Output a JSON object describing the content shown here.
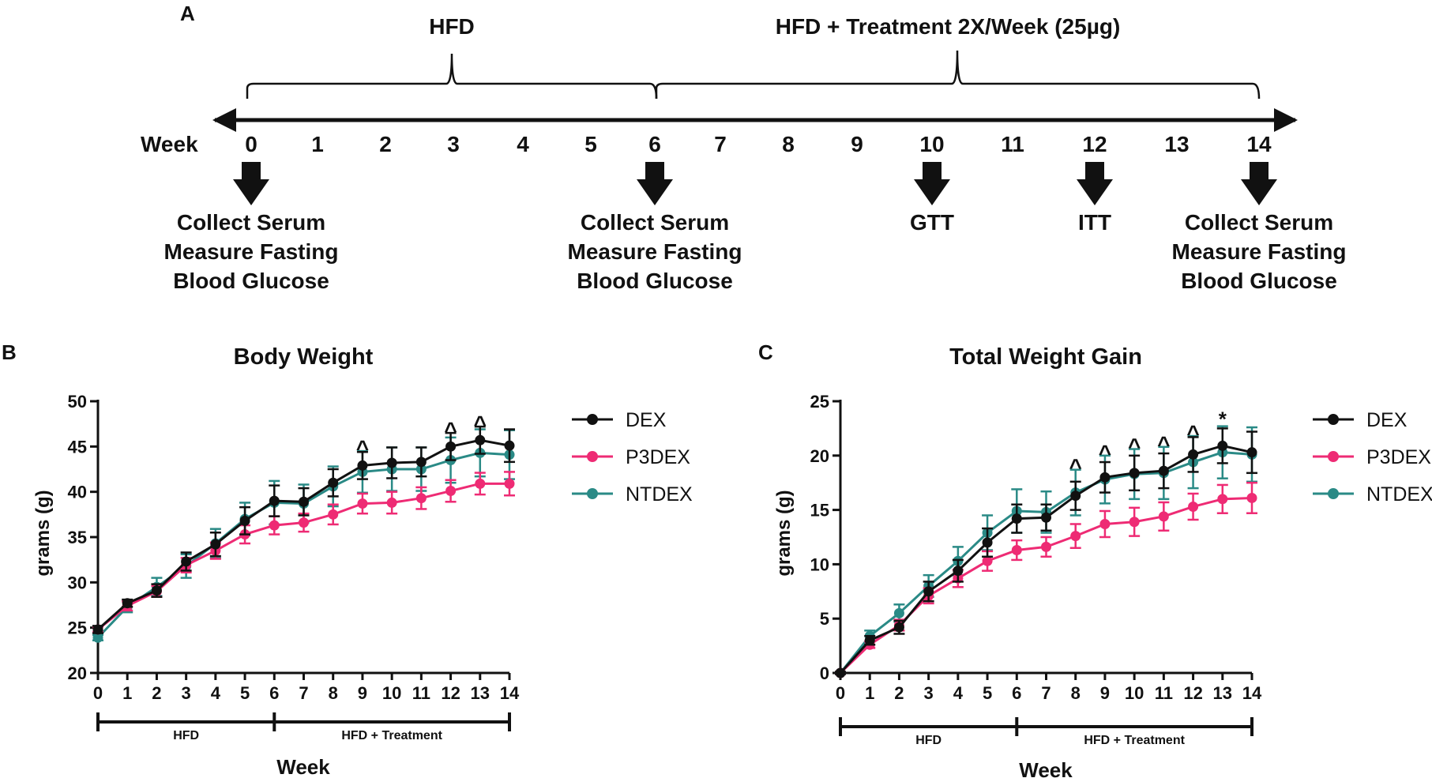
{
  "panel_a": {
    "label": "A",
    "week_label": "Week",
    "weeks": [
      "0",
      "1",
      "2",
      "3",
      "4",
      "5",
      "6",
      "7",
      "8",
      "9",
      "10",
      "11",
      "12",
      "13",
      "14"
    ],
    "phase_hfd": "HFD",
    "phase_treatment": "HFD + Treatment 2X/Week (25µg)",
    "events": [
      {
        "week": 0,
        "lines": [
          "Collect Serum",
          "Measure Fasting",
          "Blood Glucose"
        ]
      },
      {
        "week": 6,
        "lines": [
          "Collect Serum",
          "Measure Fasting",
          "Blood Glucose"
        ]
      },
      {
        "week": 10,
        "lines": [
          "GTT"
        ]
      },
      {
        "week": 12,
        "lines": [
          "ITT"
        ]
      },
      {
        "week": 14,
        "lines": [
          "Collect Serum",
          "Measure Fasting",
          "Blood Glucose"
        ]
      }
    ]
  },
  "colors": {
    "DEX": "#111111",
    "P3DEX": "#ee2b74",
    "NTDEX": "#2a8a86"
  },
  "chart_data": [
    {
      "panel": "B",
      "type": "line",
      "title": "Body Weight",
      "xlabel": "Week",
      "ylabel": "grams (g)",
      "ylim": [
        20,
        50
      ],
      "yticks": [
        20,
        25,
        30,
        35,
        40,
        45,
        50
      ],
      "x": [
        0,
        1,
        2,
        3,
        4,
        5,
        6,
        7,
        8,
        9,
        10,
        11,
        12,
        13,
        14
      ],
      "legend": [
        "DEX",
        "P3DEX",
        "NTDEX"
      ],
      "series": [
        {
          "name": "DEX",
          "values": [
            24.8,
            27.7,
            29.1,
            32.3,
            34.2,
            36.8,
            39.0,
            38.9,
            41.0,
            42.9,
            43.2,
            43.3,
            45.0,
            45.7,
            45.1
          ],
          "errors": [
            0.4,
            0.4,
            0.7,
            1.0,
            1.3,
            1.5,
            1.7,
            1.5,
            1.5,
            1.5,
            1.7,
            1.6,
            1.5,
            1.5,
            1.8
          ]
        },
        {
          "name": "P3DEX",
          "values": [
            24.8,
            27.4,
            29.0,
            31.9,
            33.5,
            35.3,
            36.3,
            36.6,
            37.5,
            38.7,
            38.8,
            39.3,
            40.1,
            40.9,
            40.9
          ],
          "errors": [
            0.3,
            0.5,
            0.6,
            0.8,
            0.9,
            1.0,
            1.0,
            1.0,
            1.1,
            1.1,
            1.2,
            1.2,
            1.2,
            1.2,
            1.3
          ]
        },
        {
          "name": "NTDEX",
          "values": [
            23.9,
            27.3,
            29.5,
            31.8,
            34.3,
            37.0,
            38.8,
            38.7,
            40.6,
            42.2,
            42.5,
            42.5,
            43.5,
            44.3,
            44.1
          ],
          "errors": [
            0.3,
            0.6,
            1.0,
            1.3,
            1.6,
            1.8,
            2.4,
            2.1,
            2.2,
            2.3,
            2.4,
            2.4,
            2.5,
            2.6,
            2.7
          ]
        }
      ],
      "annotations": [
        {
          "x": 9,
          "text": "^"
        },
        {
          "x": 12,
          "text": "^"
        },
        {
          "x": 13,
          "text": "^"
        }
      ],
      "phases": [
        {
          "from": 0,
          "to": 6,
          "label": "HFD"
        },
        {
          "from": 6,
          "to": 14,
          "label": "HFD + Treatment"
        }
      ]
    },
    {
      "panel": "C",
      "type": "line",
      "title": "Total Weight Gain",
      "xlabel": "Week",
      "ylabel": "grams (g)",
      "ylim": [
        0,
        25
      ],
      "yticks": [
        0,
        5,
        10,
        15,
        20,
        25
      ],
      "x": [
        0,
        1,
        2,
        3,
        4,
        5,
        6,
        7,
        8,
        9,
        10,
        11,
        12,
        13,
        14
      ],
      "legend": [
        "DEX",
        "P3DEX",
        "NTDEX"
      ],
      "series": [
        {
          "name": "DEX",
          "values": [
            0,
            3.0,
            4.2,
            7.5,
            9.4,
            12.0,
            14.2,
            14.3,
            16.3,
            18.0,
            18.4,
            18.6,
            20.1,
            20.9,
            20.3
          ],
          "errors": [
            0.1,
            0.4,
            0.6,
            0.9,
            1.0,
            1.3,
            1.3,
            1.2,
            1.3,
            1.4,
            1.6,
            1.6,
            1.6,
            1.6,
            1.9
          ]
        },
        {
          "name": "P3DEX",
          "values": [
            0,
            2.6,
            4.4,
            7.1,
            8.7,
            10.3,
            11.3,
            11.6,
            12.6,
            13.7,
            13.9,
            14.4,
            15.3,
            16.0,
            16.1
          ],
          "errors": [
            0.1,
            0.3,
            0.5,
            0.7,
            0.8,
            0.9,
            0.9,
            0.9,
            1.1,
            1.2,
            1.3,
            1.3,
            1.2,
            1.3,
            1.4
          ]
        },
        {
          "name": "NTDEX",
          "values": [
            0,
            3.4,
            5.5,
            8.0,
            10.3,
            12.9,
            14.9,
            14.8,
            16.6,
            17.8,
            18.3,
            18.4,
            19.4,
            20.3,
            20.1
          ],
          "errors": [
            0.1,
            0.5,
            0.8,
            1.0,
            1.3,
            1.6,
            2.0,
            1.9,
            2.1,
            2.2,
            2.3,
            2.4,
            2.4,
            2.4,
            2.5
          ]
        }
      ],
      "annotations": [
        {
          "x": 8,
          "text": "^"
        },
        {
          "x": 9,
          "text": "^"
        },
        {
          "x": 10,
          "text": "^"
        },
        {
          "x": 11,
          "text": "^"
        },
        {
          "x": 12,
          "text": "^"
        },
        {
          "x": 13,
          "text": "*"
        }
      ],
      "phases": [
        {
          "from": 0,
          "to": 6,
          "label": "HFD"
        },
        {
          "from": 6,
          "to": 14,
          "label": "HFD + Treatment"
        }
      ]
    }
  ]
}
